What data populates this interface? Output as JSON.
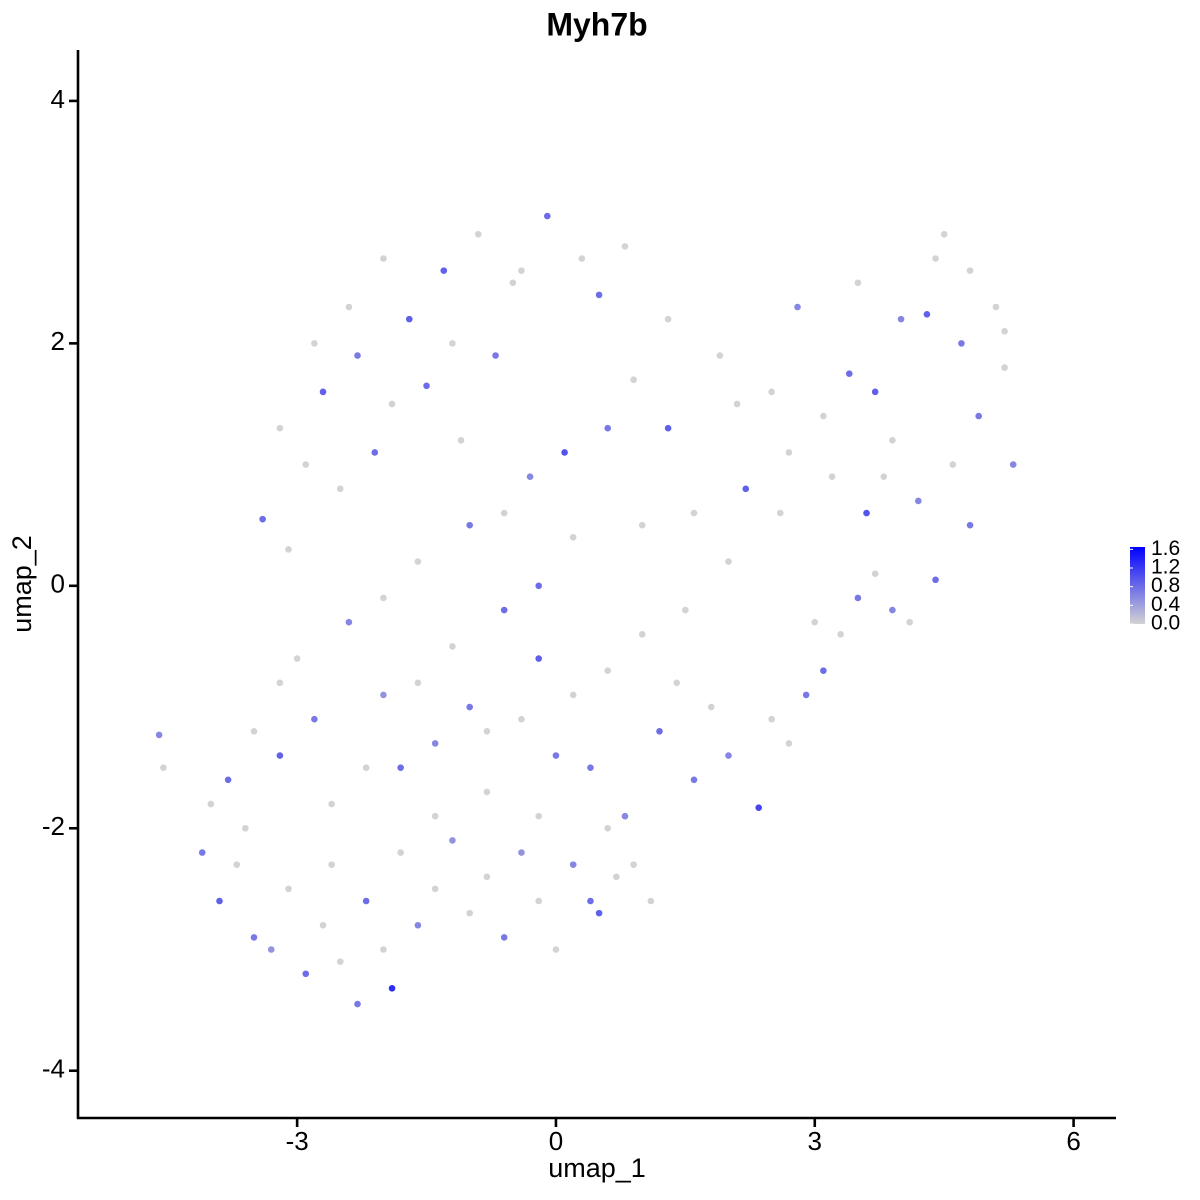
{
  "chart_data": {
    "type": "scatter",
    "title": "Myh7b",
    "x_label": "umap_1",
    "y_label": "umap_2",
    "xlim": [
      -5.54,
      6.48
    ],
    "ylim": [
      -4.39,
      4.42
    ],
    "xticks": [
      -3,
      0,
      3,
      6
    ],
    "yticks": [
      -4,
      -2,
      0,
      2,
      4
    ],
    "low_color": "#d3d3d3",
    "high_color": "#0000ff",
    "colorbar": {
      "lim": [
        0,
        1.65
      ],
      "ticks": [
        {
          "value": 0,
          "label": "0.0"
        },
        0.4,
        0.8,
        1.2,
        1.6
      ]
    },
    "x": [
      -4.6,
      -4.55,
      -4.1,
      -3.9,
      -3.7,
      -3.5,
      -3.3,
      -3.1,
      -2.9,
      -2.7,
      -2.5,
      -2.3,
      -2.2,
      -2.0,
      -1.9,
      -1.8,
      -1.6,
      -1.4,
      -1.2,
      -1.0,
      -0.8,
      -0.6,
      -0.4,
      -0.2,
      0,
      0.2,
      0.4,
      0.5,
      0.7,
      0.9,
      -3.8,
      -3.5,
      -3.2,
      -3.0,
      -2.8,
      -2.6,
      -2.4,
      -2.2,
      -2.0,
      -1.8,
      -1.6,
      -1.4,
      -1.2,
      -1.0,
      -0.8,
      -0.6,
      -0.4,
      -0.2,
      0,
      0.2,
      0.4,
      0.6,
      0.8,
      1.0,
      1.2,
      1.4,
      1.6,
      1.8,
      2.0,
      2.35,
      2.5,
      2.7,
      2.9,
      3.1,
      3.3,
      3.5,
      3.7,
      3.9,
      4.1,
      4.4,
      -3.4,
      -3.1,
      -2.9,
      -2.7,
      -2.5,
      -2.3,
      -2.1,
      -1.9,
      -1.7,
      -1.5,
      -1.3,
      -1.1,
      -0.9,
      -0.7,
      -0.5,
      -0.3,
      -0.1,
      0.1,
      0.3,
      0.5,
      -1.6,
      -1.0,
      -0.6,
      -0.2,
      0.2,
      0.6,
      1.0,
      1.3,
      1.6,
      1.9,
      2.2,
      2.5,
      2.8,
      3.1,
      3.4,
      3.7,
      4.0,
      4.3,
      4.5,
      4.7,
      4.9,
      5.1,
      5.3,
      5.2,
      4.8,
      4.6,
      4.2,
      3.9,
      3.6,
      3.2,
      -4.0,
      -3.6,
      -3.2,
      -2.6,
      -2.0,
      -1.4,
      -0.8,
      -0.2,
      0.6,
      1.1,
      1.5,
      2.0,
      2.6,
      3.0,
      3.8,
      4.8,
      5.2,
      0.8,
      -0.4,
      -1.2,
      -2.0,
      -2.4,
      -2.8,
      -3.2,
      0.9,
      1.3,
      2.1,
      2.7,
      3.5,
      4.4
    ],
    "y": [
      -1.23,
      -1.5,
      -2.2,
      -2.6,
      -2.3,
      -2.9,
      -3.0,
      -2.5,
      -3.2,
      -2.8,
      -3.1,
      -3.45,
      -2.6,
      -3.0,
      -3.32,
      -2.2,
      -2.8,
      -2.5,
      -2.1,
      -2.7,
      -2.4,
      -2.9,
      -2.2,
      -2.6,
      -3.0,
      -2.3,
      -2.6,
      -2.7,
      -2.4,
      -2.3,
      -1.6,
      -1.2,
      -1.4,
      -0.6,
      -1.1,
      -1.8,
      -0.3,
      -1.5,
      -0.9,
      -1.5,
      -0.8,
      -1.3,
      -0.5,
      -1.0,
      -1.7,
      -0.2,
      -1.1,
      -0.6,
      -1.4,
      -0.9,
      -1.5,
      -0.7,
      -1.9,
      -0.4,
      -1.2,
      -0.8,
      -1.6,
      -1.0,
      -1.4,
      -1.83,
      -1.1,
      -1.3,
      -0.9,
      -0.7,
      -0.4,
      -0.1,
      0.1,
      -0.2,
      -0.3,
      0.05,
      0.55,
      0.3,
      1.0,
      1.6,
      0.8,
      1.9,
      1.1,
      1.5,
      2.2,
      1.65,
      2.6,
      1.2,
      2.9,
      1.9,
      2.5,
      0.9,
      3.05,
      1.1,
      2.7,
      2.4,
      0.2,
      0.5,
      0.6,
      0.0,
      0.4,
      1.3,
      0.5,
      1.3,
      0.6,
      1.9,
      0.8,
      1.6,
      2.3,
      1.4,
      1.75,
      1.6,
      2.2,
      2.24,
      2.9,
      2.0,
      1.4,
      2.3,
      1.0,
      1.8,
      0.5,
      1.0,
      0.7,
      1.2,
      0.6,
      0.9,
      -1.8,
      -2.0,
      -0.8,
      -2.3,
      -0.1,
      -1.9,
      -1.2,
      -1.9,
      -2.0,
      -2.6,
      -0.2,
      0.2,
      0.6,
      -0.3,
      0.9,
      2.6,
      2.1,
      2.8,
      2.6,
      2.0,
      2.7,
      2.3,
      2.0,
      1.3,
      1.7,
      2.2,
      1.5,
      1.1,
      2.5,
      2.7
    ],
    "values": [
      0.6,
      0,
      0.7,
      0.9,
      0,
      0.7,
      0.5,
      0,
      0.8,
      0,
      0,
      0.7,
      0.8,
      0,
      1.3,
      0,
      0.6,
      0,
      0.5,
      0,
      0,
      0.7,
      0.5,
      0,
      0,
      0.6,
      0.8,
      0.9,
      0,
      0,
      0.8,
      0,
      0.9,
      0,
      0.7,
      0,
      0.6,
      0,
      0.5,
      0.8,
      0,
      0.6,
      0,
      0.7,
      0,
      0.8,
      0,
      0.9,
      0.7,
      0,
      0.7,
      0,
      0.6,
      0,
      0.8,
      0,
      0.7,
      0,
      0.6,
      1.1,
      0,
      0,
      0.7,
      0.8,
      0,
      0.7,
      0,
      0.6,
      0,
      0.8,
      0.8,
      0,
      0,
      0.9,
      0,
      0.7,
      0.8,
      0,
      0.9,
      0.8,
      0.9,
      0,
      0,
      0.7,
      0,
      0.6,
      0.8,
      1.0,
      0,
      0.8,
      0,
      0.7,
      0,
      0.8,
      0,
      0.7,
      0,
      0.9,
      0,
      0,
      0.9,
      0,
      0.6,
      0,
      0.8,
      0.9,
      0.6,
      0.9,
      0,
      0.7,
      0.7,
      0,
      0.6,
      0,
      0.7,
      0,
      0.6,
      0,
      1.0,
      0,
      0,
      0,
      0,
      0,
      0,
      0,
      0,
      0,
      0,
      0,
      0,
      0,
      0,
      0,
      0,
      0,
      0,
      0,
      0,
      0,
      0,
      0,
      0,
      0,
      0,
      0,
      0,
      0,
      0,
      0
    ]
  }
}
